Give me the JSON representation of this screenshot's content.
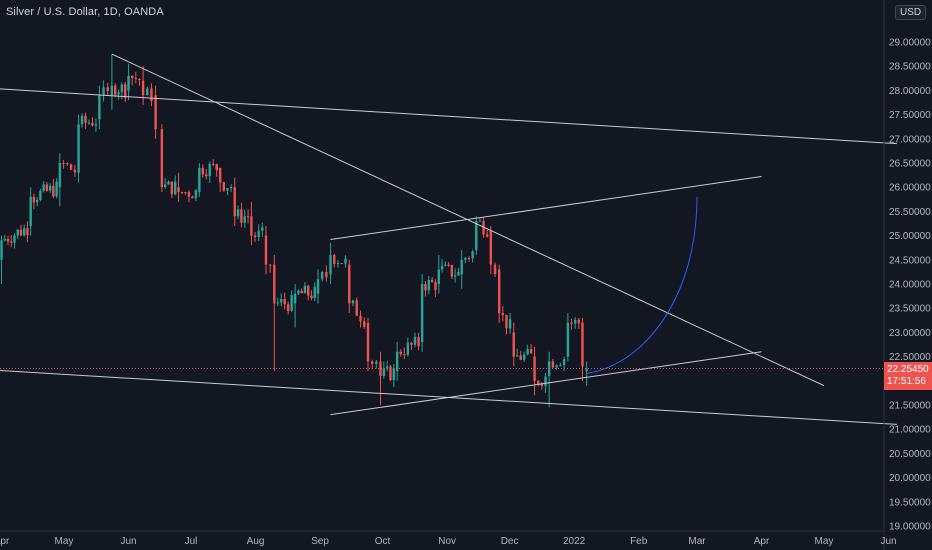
{
  "header": {
    "symbol_title": "Silver / U.S. Dollar, 1D, OANDA",
    "currency_button": "USD"
  },
  "price_tag": {
    "price": "22.25450",
    "countdown": "17:51:56"
  },
  "colors": {
    "background": "#131722",
    "up_candle": "#26a69a",
    "down_candle": "#ef5350",
    "drawing_line": "#c9ccd4",
    "curve": "#2962ff",
    "axis_text": "#b2b5be"
  },
  "chart_data": {
    "type": "candlestick",
    "y_axis": {
      "side": "right",
      "range": [
        18.95,
        29.55
      ],
      "ticks": [
        "19.00000",
        "19.50000",
        "20.00000",
        "20.50000",
        "21.00000",
        "21.50000",
        "22.00000",
        "22.50000",
        "23.00000",
        "23.50000",
        "24.00000",
        "24.50000",
        "25.00000",
        "25.50000",
        "26.00000",
        "26.50000",
        "27.00000",
        "27.50000",
        "28.00000",
        "28.50000",
        "29.00000"
      ]
    },
    "x_axis": {
      "labels": [
        "Apr",
        "May",
        "Jun",
        "Jul",
        "Aug",
        "Sep",
        "Oct",
        "Nov",
        "Dec",
        "2022",
        "Feb",
        "Mar",
        "Apr",
        "May",
        "Jun"
      ]
    },
    "last_price": 22.2545,
    "series": [
      {
        "values": [
          {
            "date": "2021-04-01",
            "open": 24.5,
            "high": 25.0,
            "low": 24.0,
            "close": 24.9
          },
          {
            "date": "2021-04-15",
            "open": 25.2,
            "high": 26.0,
            "low": 25.0,
            "close": 25.8
          },
          {
            "date": "2021-04-29",
            "open": 26.0,
            "high": 26.7,
            "low": 25.6,
            "close": 26.5
          },
          {
            "date": "2021-05-08",
            "open": 26.3,
            "high": 27.5,
            "low": 26.1,
            "close": 27.3
          },
          {
            "date": "2021-05-18",
            "open": 27.4,
            "high": 28.1,
            "low": 27.2,
            "close": 27.9
          },
          {
            "date": "2021-05-24",
            "open": 27.9,
            "high": 28.75,
            "low": 27.6,
            "close": 28.1
          },
          {
            "date": "2021-06-01",
            "open": 28.0,
            "high": 28.55,
            "low": 27.8,
            "close": 28.3
          },
          {
            "date": "2021-06-08",
            "open": 28.2,
            "high": 28.5,
            "low": 27.7,
            "close": 27.9
          },
          {
            "date": "2021-06-14",
            "open": 27.9,
            "high": 28.1,
            "low": 27.0,
            "close": 27.2
          },
          {
            "date": "2021-06-17",
            "open": 27.2,
            "high": 27.3,
            "low": 25.9,
            "close": 26.0
          },
          {
            "date": "2021-06-25",
            "open": 26.0,
            "high": 26.3,
            "low": 25.7,
            "close": 25.9
          },
          {
            "date": "2021-07-05",
            "open": 25.9,
            "high": 26.5,
            "low": 25.8,
            "close": 26.4
          },
          {
            "date": "2021-07-15",
            "open": 26.4,
            "high": 26.4,
            "low": 25.9,
            "close": 26.1
          },
          {
            "date": "2021-07-22",
            "open": 26.0,
            "high": 26.2,
            "low": 25.2,
            "close": 25.4
          },
          {
            "date": "2021-07-30",
            "open": 25.4,
            "high": 25.7,
            "low": 24.8,
            "close": 25.0
          },
          {
            "date": "2021-08-06",
            "open": 25.0,
            "high": 25.2,
            "low": 24.2,
            "close": 24.4
          },
          {
            "date": "2021-08-10",
            "open": 24.4,
            "high": 24.6,
            "low": 22.2,
            "close": 23.6
          },
          {
            "date": "2021-08-20",
            "open": 23.6,
            "high": 24.0,
            "low": 23.1,
            "close": 23.8
          },
          {
            "date": "2021-08-31",
            "open": 23.8,
            "high": 24.3,
            "low": 23.6,
            "close": 24.1
          },
          {
            "date": "2021-09-06",
            "open": 24.2,
            "high": 24.85,
            "low": 24.0,
            "close": 24.6
          },
          {
            "date": "2021-09-15",
            "open": 24.4,
            "high": 24.5,
            "low": 23.4,
            "close": 23.6
          },
          {
            "date": "2021-09-24",
            "open": 23.2,
            "high": 23.3,
            "low": 22.2,
            "close": 22.4
          },
          {
            "date": "2021-09-30",
            "open": 22.4,
            "high": 22.6,
            "low": 21.5,
            "close": 22.1
          },
          {
            "date": "2021-10-08",
            "open": 22.2,
            "high": 22.8,
            "low": 22.0,
            "close": 22.6
          },
          {
            "date": "2021-10-20",
            "open": 22.8,
            "high": 24.2,
            "low": 22.6,
            "close": 24.0
          },
          {
            "date": "2021-10-28",
            "open": 24.0,
            "high": 24.6,
            "low": 23.8,
            "close": 24.3
          },
          {
            "date": "2021-11-08",
            "open": 24.2,
            "high": 24.7,
            "low": 23.9,
            "close": 24.5
          },
          {
            "date": "2021-11-15",
            "open": 24.7,
            "high": 25.4,
            "low": 24.6,
            "close": 25.3
          },
          {
            "date": "2021-11-22",
            "open": 25.1,
            "high": 25.2,
            "low": 24.2,
            "close": 24.4
          },
          {
            "date": "2021-11-26",
            "open": 24.3,
            "high": 24.4,
            "low": 23.2,
            "close": 23.4
          },
          {
            "date": "2021-12-03",
            "open": 23.0,
            "high": 23.2,
            "low": 22.3,
            "close": 22.5
          },
          {
            "date": "2021-12-13",
            "open": 22.5,
            "high": 22.7,
            "low": 21.7,
            "close": 22.0
          },
          {
            "date": "2021-12-20",
            "open": 22.1,
            "high": 22.6,
            "low": 21.45,
            "close": 22.4
          },
          {
            "date": "2021-12-29",
            "open": 22.5,
            "high": 23.4,
            "low": 22.4,
            "close": 23.2
          },
          {
            "date": "2022-01-05",
            "open": 23.2,
            "high": 23.3,
            "low": 22.0,
            "close": 22.3
          },
          {
            "date": "2022-01-07",
            "open": 22.2,
            "high": 22.4,
            "low": 21.9,
            "close": 22.25
          }
        ]
      }
    ],
    "annotations": [
      {
        "type": "trendline",
        "from": {
          "date": "2021-05-24",
          "price": 28.75
        },
        "to": {
          "date": "2022-05-01",
          "price": 21.9
        }
      },
      {
        "type": "trendline",
        "from": {
          "date": "2021-03-05",
          "price": 28.1
        },
        "to": {
          "date": "2022-06-05",
          "price": 26.9
        }
      },
      {
        "type": "trendline",
        "from": {
          "date": "2021-03-05",
          "price": 22.28
        },
        "to": {
          "date": "2022-06-05",
          "price": 21.1
        }
      },
      {
        "type": "trendline",
        "from": {
          "date": "2021-09-06",
          "price": 24.92
        },
        "to": {
          "date": "2022-04-01",
          "price": 26.22
        }
      },
      {
        "type": "trendline",
        "from": {
          "date": "2021-09-06",
          "price": 21.3
        },
        "to": {
          "date": "2022-04-01",
          "price": 22.6
        }
      },
      {
        "type": "curve",
        "from": {
          "date": "2022-01-07",
          "price": 22.15
        },
        "to": {
          "date": "2022-03-01",
          "price": 25.8
        }
      },
      {
        "type": "horizontal_dotted",
        "price": 22.2545
      }
    ]
  }
}
